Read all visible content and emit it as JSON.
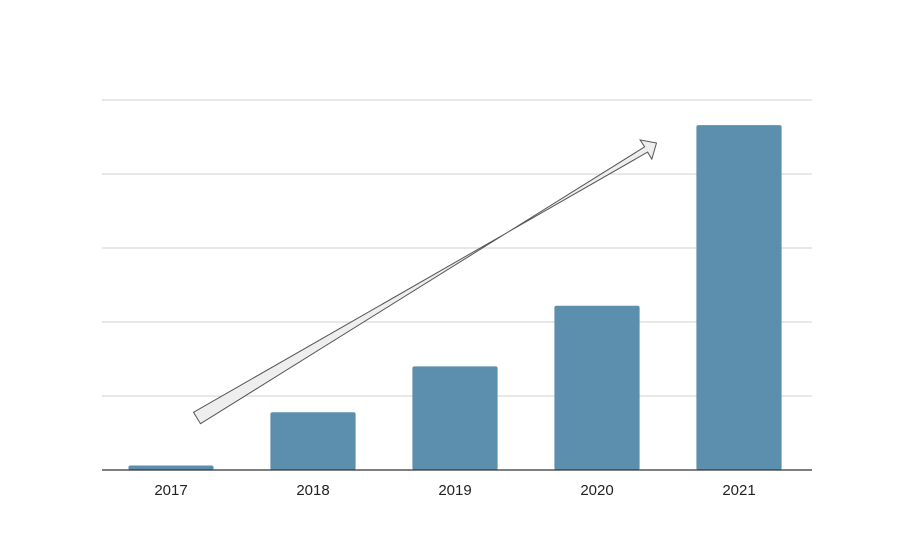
{
  "chart_data": {
    "type": "bar",
    "categories": [
      "2017",
      "2018",
      "2019",
      "2020",
      "2021"
    ],
    "values": [
      0.3,
      3.9,
      7.0,
      11.1,
      23.3
    ],
    "ylim": [
      0,
      25
    ],
    "grid": true,
    "title": "",
    "xlabel": "",
    "ylabel": "",
    "annotations": [
      "upward trend arrow"
    ]
  },
  "colors": {
    "bar": "#5b8fad",
    "grid": "#d9d9d9",
    "axis": "#333333",
    "arrow_fill": "#eeeeee",
    "arrow_stroke": "#555555"
  }
}
